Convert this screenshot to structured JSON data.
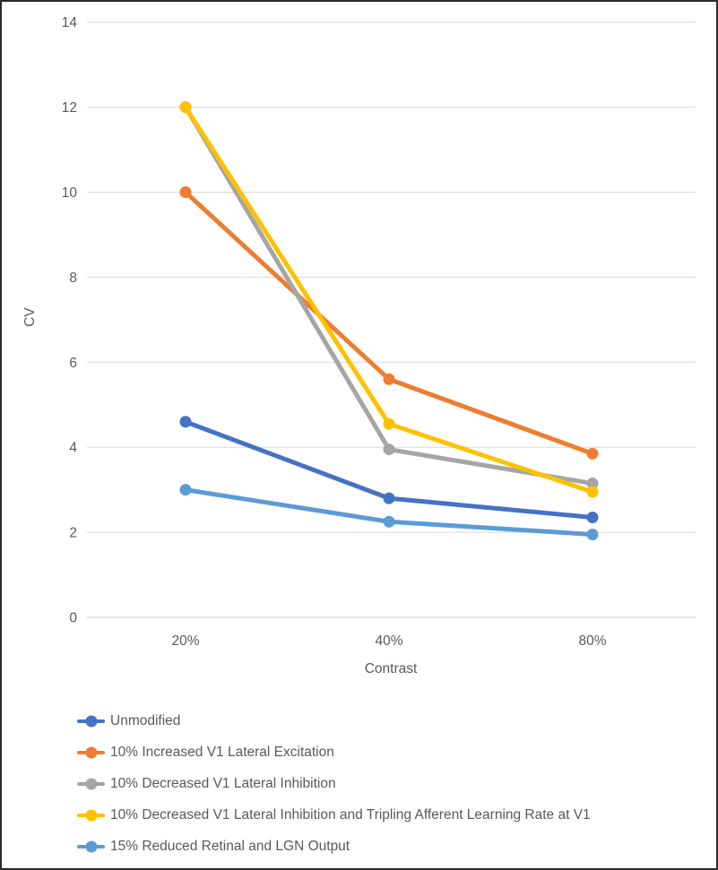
{
  "chart_data": {
    "type": "line",
    "title": "",
    "categories": [
      "20%",
      "40%",
      "80%"
    ],
    "series": [
      {
        "name": "Unmodified",
        "color": "#4472C4",
        "values": [
          4.6,
          2.8,
          2.35
        ]
      },
      {
        "name": "10% Increased V1 Lateral Excitation",
        "color": "#ED7D31",
        "values": [
          10.0,
          5.6,
          3.85
        ]
      },
      {
        "name": "10% Decreased V1 Lateral Inhibition",
        "color": "#A5A5A5",
        "values": [
          12.0,
          3.95,
          3.15
        ]
      },
      {
        "name": "10% Decreased V1 Lateral Inhibition and Tripling Afferent Learning Rate at V1",
        "color": "#FFC000",
        "values": [
          12.0,
          4.55,
          2.95
        ]
      },
      {
        "name": "15% Reduced Retinal and LGN Output",
        "color": "#5B9BD5",
        "values": [
          3.0,
          2.25,
          1.95
        ]
      }
    ],
    "xlabel": "Contrast",
    "ylabel": "CV",
    "ylim": [
      0,
      14
    ],
    "ytick_step": 2,
    "yticks": [
      0,
      2,
      4,
      6,
      8,
      10,
      12,
      14
    ],
    "grid": true,
    "gridline_color": "#D9D9D9",
    "axis_line_color": "#C9C9C9",
    "text_color": "#595959",
    "legend_position": "bottom-left",
    "marker": "circle"
  }
}
